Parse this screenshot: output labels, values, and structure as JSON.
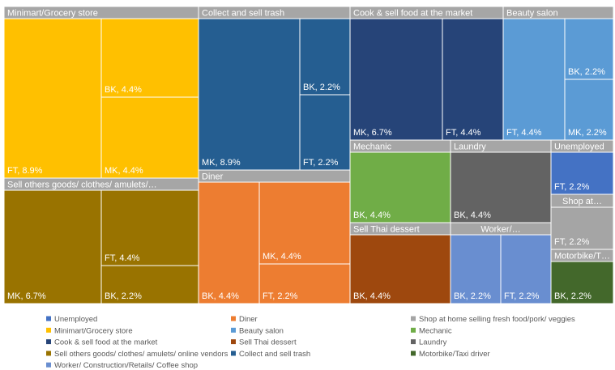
{
  "chart_data": {
    "type": "treemap",
    "groups": [
      {
        "name": "Unemployed",
        "header": "Unemployed",
        "color": "#4472c4",
        "children": [
          {
            "name": "FT",
            "value": 2.2,
            "label": "FT, 2.2%"
          }
        ]
      },
      {
        "name": "Minimart/Grocery store",
        "header": "Minimart/Grocery store",
        "color": "#ffc000",
        "children": [
          {
            "name": "FT",
            "value": 8.9,
            "label": "FT, 8.9%"
          },
          {
            "name": "BK",
            "value": 4.4,
            "label": "BK, 4.4%"
          },
          {
            "name": "MK",
            "value": 4.4,
            "label": "MK, 4.4%"
          }
        ]
      },
      {
        "name": "Cook & sell food at the market",
        "header": "Cook & sell food at the market",
        "color": "#264478",
        "children": [
          {
            "name": "MK",
            "value": 6.7,
            "label": "MK, 6.7%"
          },
          {
            "name": "FT",
            "value": 4.4,
            "label": "FT, 4.4%"
          }
        ]
      },
      {
        "name": "Sell others goods/ clothes/ amulets/ online vendors",
        "header": "Sell others goods/ clothes/ amulets/…",
        "color": "#997300",
        "children": [
          {
            "name": "MK",
            "value": 6.7,
            "label": "MK, 6.7%"
          },
          {
            "name": "FT",
            "value": 4.4,
            "label": "FT, 4.4%"
          },
          {
            "name": "BK",
            "value": 2.2,
            "label": "BK, 2.2%"
          }
        ]
      },
      {
        "name": "Worker/ Construction/Retails/ Coffee shop",
        "header": "Worker/…",
        "color": "#698ed0",
        "children": [
          {
            "name": "BK",
            "value": 2.2,
            "label": "BK, 2.2%"
          },
          {
            "name": "FT",
            "value": 2.2,
            "label": "FT, 2.2%"
          }
        ]
      },
      {
        "name": "Diner",
        "header": "Diner",
        "color": "#ed7d31",
        "children": [
          {
            "name": "BK",
            "value": 4.4,
            "label": "BK, 4.4%"
          },
          {
            "name": "MK",
            "value": 4.4,
            "label": "MK, 4.4%"
          },
          {
            "name": "FT",
            "value": 2.2,
            "label": "FT, 2.2%"
          }
        ]
      },
      {
        "name": "Beauty salon",
        "header": "Beauty salon",
        "color": "#5b9bd5",
        "children": [
          {
            "name": "FT",
            "value": 4.4,
            "label": "FT, 4.4%"
          },
          {
            "name": "BK",
            "value": 2.2,
            "label": "BK, 2.2%"
          },
          {
            "name": "MK",
            "value": 2.2,
            "label": "MK, 2.2%"
          }
        ]
      },
      {
        "name": "Sell Thai dessert",
        "header": "Sell Thai dessert",
        "color": "#9e480e",
        "children": [
          {
            "name": "BK",
            "value": 4.4,
            "label": "BK, 4.4%"
          }
        ]
      },
      {
        "name": "Collect and sell trash",
        "header": "Collect and sell trash",
        "color": "#255e91",
        "children": [
          {
            "name": "MK",
            "value": 8.9,
            "label": "MK, 8.9%"
          },
          {
            "name": "BK",
            "value": 2.2,
            "label": "BK, 2.2%"
          },
          {
            "name": "FT",
            "value": 2.2,
            "label": "FT, 2.2%"
          }
        ]
      },
      {
        "name": "Shop at home selling fresh food/pork/ veggies",
        "header": "Shop at…",
        "color": "#a5a5a5",
        "children": [
          {
            "name": "FT",
            "value": 2.2,
            "label": "FT, 2.2%"
          }
        ]
      },
      {
        "name": "Mechanic",
        "header": "Mechanic",
        "color": "#70ad47",
        "children": [
          {
            "name": "BK",
            "value": 4.4,
            "label": "BK, 4.4%"
          }
        ]
      },
      {
        "name": "Laundry",
        "header": "Laundry",
        "color": "#636363",
        "children": [
          {
            "name": "BK",
            "value": 4.4,
            "label": "BK, 4.4%"
          }
        ]
      },
      {
        "name": "Motorbike/Taxi driver",
        "header": "Motorbike/T…",
        "color": "#43682b",
        "children": [
          {
            "name": "BK",
            "value": 2.2,
            "label": "BK, 2.2%"
          }
        ]
      }
    ]
  }
}
